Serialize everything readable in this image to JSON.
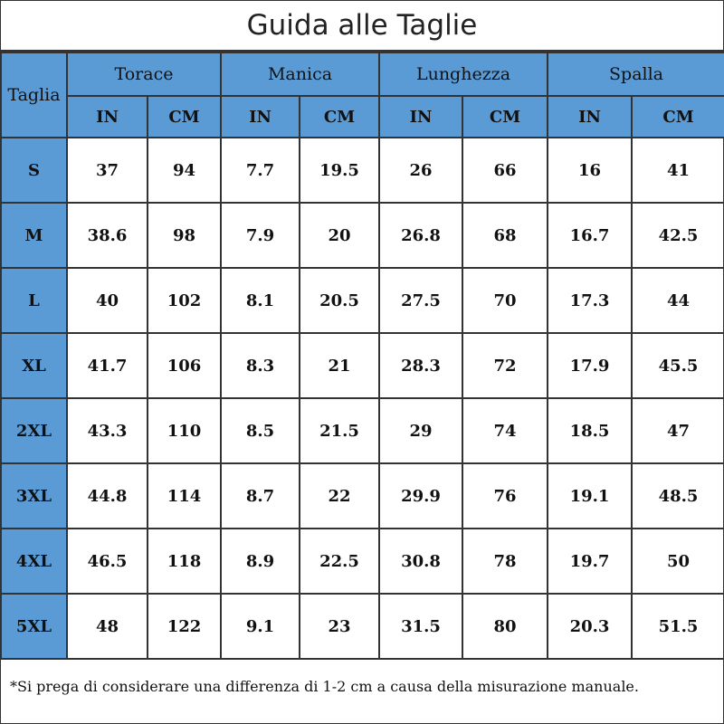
{
  "title": "Guida alle Taglie",
  "header": {
    "size_label": "Taglia",
    "groups": [
      "Torace",
      "Manica",
      "Lunghezza",
      "Spalla"
    ],
    "units": [
      "IN",
      "CM",
      "IN",
      "CM",
      "IN",
      "CM",
      "IN",
      "CM"
    ]
  },
  "rows": [
    {
      "size": "S",
      "values": [
        "37",
        "94",
        "7.7",
        "19.5",
        "26",
        "66",
        "16",
        "41"
      ]
    },
    {
      "size": "M",
      "values": [
        "38.6",
        "98",
        "7.9",
        "20",
        "26.8",
        "68",
        "16.7",
        "42.5"
      ]
    },
    {
      "size": "L",
      "values": [
        "40",
        "102",
        "8.1",
        "20.5",
        "27.5",
        "70",
        "17.3",
        "44"
      ]
    },
    {
      "size": "XL",
      "values": [
        "41.7",
        "106",
        "8.3",
        "21",
        "28.3",
        "72",
        "17.9",
        "45.5"
      ]
    },
    {
      "size": "2XL",
      "values": [
        "43.3",
        "110",
        "8.5",
        "21.5",
        "29",
        "74",
        "18.5",
        "47"
      ]
    },
    {
      "size": "3XL",
      "values": [
        "44.8",
        "114",
        "8.7",
        "22",
        "29.9",
        "76",
        "19.1",
        "48.5"
      ]
    },
    {
      "size": "4XL",
      "values": [
        "46.5",
        "118",
        "8.9",
        "22.5",
        "30.8",
        "78",
        "19.7",
        "50"
      ]
    },
    {
      "size": "5XL",
      "values": [
        "48",
        "122",
        "9.1",
        "23",
        "31.5",
        "80",
        "20.3",
        "51.5"
      ]
    }
  ],
  "footnote": "*Si prega di considerare una differenza di 1-2 cm a causa della misurazione manuale.",
  "colors": {
    "header_bg": "#5b9bd5",
    "border": "#333333"
  }
}
